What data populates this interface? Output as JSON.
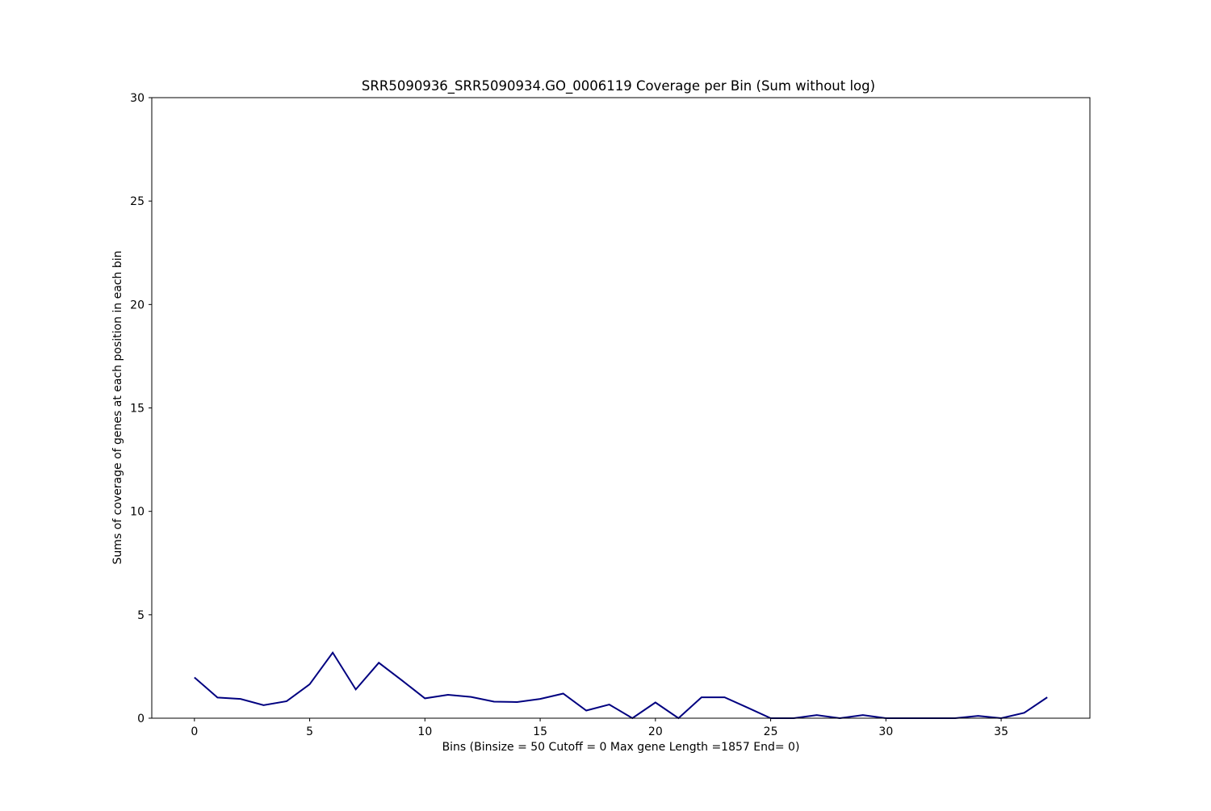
{
  "chart_data": {
    "type": "line",
    "title": "SRR5090936_SRR5090934.GO_0006119 Coverage per Bin (Sum without log)",
    "xlabel": "Bins  (Binsize = 50 Cutoff = 0 Max gene Length =1857 End= 0)",
    "ylabel": "Sums of coverage of genes at each position in each bin",
    "xlim": [
      -1.85,
      38.85
    ],
    "ylim": [
      0,
      30
    ],
    "xticks": [
      0,
      5,
      10,
      15,
      20,
      25,
      30,
      35
    ],
    "yticks": [
      0,
      5,
      10,
      15,
      20,
      25,
      30
    ],
    "grid": false,
    "series": [
      {
        "color": "#000080",
        "x": [
          0,
          1,
          2,
          3,
          4,
          5,
          6,
          7,
          8,
          9,
          10,
          11,
          12,
          13,
          14,
          15,
          16,
          17,
          18,
          19,
          20,
          21,
          22,
          23,
          24,
          25,
          26,
          27,
          28,
          29,
          30,
          31,
          32,
          33,
          34,
          35,
          36,
          37
        ],
        "y": [
          1.97,
          1.0,
          0.93,
          0.63,
          0.82,
          1.64,
          3.17,
          1.39,
          2.68,
          1.83,
          0.96,
          1.13,
          1.03,
          0.8,
          0.78,
          0.93,
          1.19,
          0.37,
          0.66,
          0.0,
          0.76,
          0.0,
          1.01,
          1.01,
          0.51,
          0.0,
          0.0,
          0.15,
          0.0,
          0.15,
          0.0,
          0.0,
          0.0,
          0.0,
          0.11,
          0.0,
          0.26,
          1.01
        ]
      }
    ]
  }
}
